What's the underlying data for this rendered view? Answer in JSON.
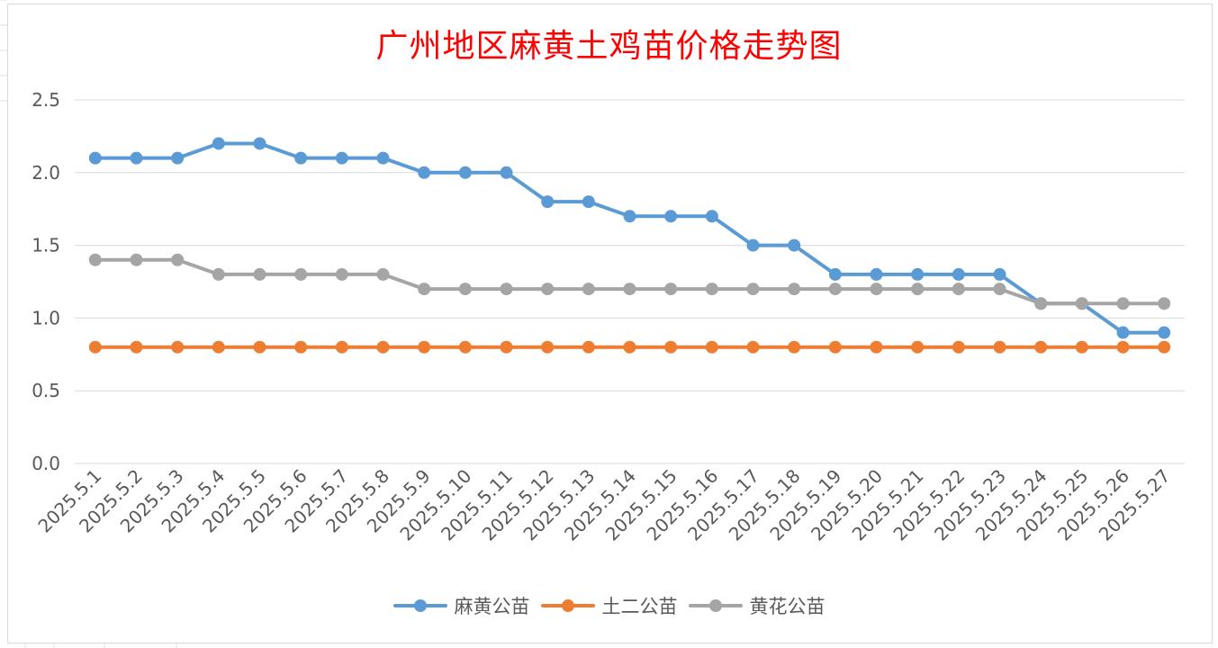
{
  "chart_data": {
    "type": "line",
    "title": "广州地区麻黄土鸡苗价格走势图",
    "xlabel": "",
    "ylabel": "",
    "ylim": [
      0,
      2.5
    ],
    "yticks": [
      "0.0",
      "0.5",
      "1.0",
      "1.5",
      "2.0",
      "2.5"
    ],
    "grid": true,
    "legend_position": "bottom",
    "categories": [
      "2025.5.1",
      "2025.5.2",
      "2025.5.3",
      "2025.5.4",
      "2025.5.5",
      "2025.5.6",
      "2025.5.7",
      "2025.5.8",
      "2025.5.9",
      "2025.5.10",
      "2025.5.11",
      "2025.5.12",
      "2025.5.13",
      "2025.5.14",
      "2025.5.15",
      "2025.5.16",
      "2025.5.17",
      "2025.5.18",
      "2025.5.19",
      "2025.5.20",
      "2025.5.21",
      "2025.5.22",
      "2025.5.23",
      "2025.5.24",
      "2025.5.25",
      "2025.5.26",
      "2025.5.27"
    ],
    "series": [
      {
        "name": "麻黄公苗",
        "color": "#5b9bd5",
        "values": [
          2.1,
          2.1,
          2.1,
          2.2,
          2.2,
          2.1,
          2.1,
          2.1,
          2.0,
          2.0,
          2.0,
          1.8,
          1.8,
          1.7,
          1.7,
          1.7,
          1.5,
          1.5,
          1.3,
          1.3,
          1.3,
          1.3,
          1.3,
          1.1,
          1.1,
          0.9,
          0.9
        ]
      },
      {
        "name": "土二公苗",
        "color": "#ed7d31",
        "values": [
          0.8,
          0.8,
          0.8,
          0.8,
          0.8,
          0.8,
          0.8,
          0.8,
          0.8,
          0.8,
          0.8,
          0.8,
          0.8,
          0.8,
          0.8,
          0.8,
          0.8,
          0.8,
          0.8,
          0.8,
          0.8,
          0.8,
          0.8,
          0.8,
          0.8,
          0.8,
          0.8
        ]
      },
      {
        "name": "黄花公苗",
        "color": "#a5a5a5",
        "values": [
          1.4,
          1.4,
          1.4,
          1.3,
          1.3,
          1.3,
          1.3,
          1.3,
          1.2,
          1.2,
          1.2,
          1.2,
          1.2,
          1.2,
          1.2,
          1.2,
          1.2,
          1.2,
          1.2,
          1.2,
          1.2,
          1.2,
          1.2,
          1.1,
          1.1,
          1.1,
          1.1
        ]
      }
    ]
  }
}
